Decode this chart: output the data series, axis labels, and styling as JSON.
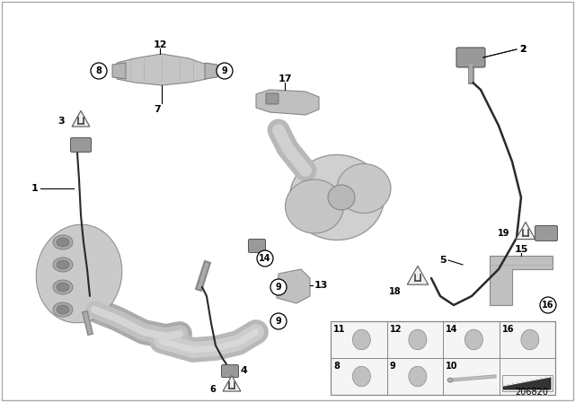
{
  "bg_color": "#ffffff",
  "diagram_num": "206820",
  "border_color": "#999999",
  "line_color": "#000000",
  "part_light": "#d8d8d8",
  "part_mid": "#b0b0b0",
  "part_dark": "#888888",
  "part_shadow": "#707070",
  "wire_color": "#2a2a2a",
  "callout_fill": "#ffffff",
  "callout_edge": "#000000",
  "warn_fill": "#f0f0f0",
  "warn_edge": "#555555",
  "table_border": "#888888",
  "table_fill": "#f5f5f5",
  "label_font": 7.5,
  "callout_font": 7.0
}
